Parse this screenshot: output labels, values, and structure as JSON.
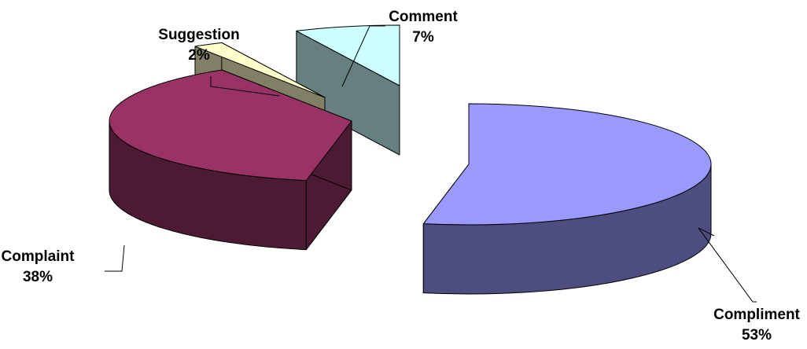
{
  "chart_data": {
    "type": "pie",
    "title": "",
    "slices": [
      {
        "label": "Compliment",
        "value": 53,
        "value_label": "53%",
        "color": "#9999FF",
        "side_color": "#4D4D80"
      },
      {
        "label": "Complaint",
        "value": 38,
        "value_label": "38%",
        "color": "#993366",
        "side_color": "#4C1A33"
      },
      {
        "label": "Suggestion",
        "value": 2,
        "value_label": "2%",
        "color": "#FFFFCC",
        "side_color": "#808066"
      },
      {
        "label": "Comment",
        "value": 7,
        "value_label": "7%",
        "color": "#CCFFFF",
        "side_color": "#668080"
      }
    ],
    "exploded": true,
    "three_d": true,
    "legend": "none",
    "data_labels": "category and percent"
  }
}
